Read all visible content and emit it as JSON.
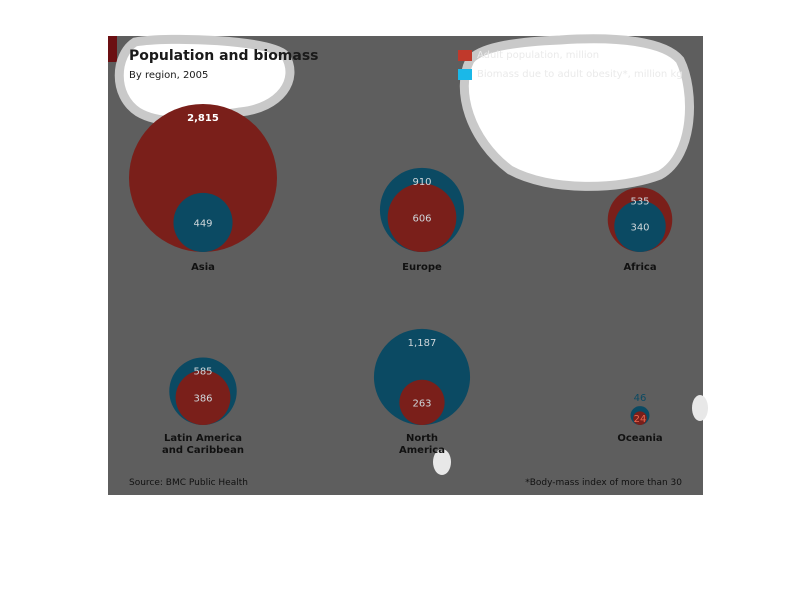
{
  "chart_data": {
    "type": "bubble",
    "title": "Population and biomass",
    "subtitle": "By region, 2005",
    "legend": [
      {
        "name": "Adult population, million",
        "color": "#c0392b"
      },
      {
        "name": "Biomass due to adult obesity*, million kg",
        "color": "#1ab8e8"
      }
    ],
    "series": [
      {
        "name": "Adult population, million",
        "color": "#7a1f1a"
      },
      {
        "name": "Biomass due to adult obesity*, million kg",
        "color": "#0b4a63"
      }
    ],
    "regions": [
      {
        "name": "Asia",
        "label_lines": [
          "Asia"
        ],
        "population": 2815,
        "population_label": "2,815",
        "biomass": 449,
        "biomass_label": "449"
      },
      {
        "name": "Europe",
        "label_lines": [
          "Europe"
        ],
        "population": 606,
        "population_label": "606",
        "biomass": 910,
        "biomass_label": "910"
      },
      {
        "name": "Africa",
        "label_lines": [
          "Africa"
        ],
        "population": 535,
        "population_label": "535",
        "biomass": 340,
        "biomass_label": "340"
      },
      {
        "name": "Latin America and Caribbean",
        "label_lines": [
          "Latin America",
          "and Caribbean"
        ],
        "population": 386,
        "population_label": "386",
        "biomass": 585,
        "biomass_label": "585"
      },
      {
        "name": "North America",
        "label_lines": [
          "North",
          "America"
        ],
        "population": 263,
        "population_label": "263",
        "biomass": 1187,
        "biomass_label": "1,187"
      },
      {
        "name": "Oceania",
        "label_lines": [
          "Oceania"
        ],
        "population": 24,
        "population_label": "24",
        "biomass": 46,
        "biomass_label": "46"
      }
    ]
  },
  "source": "Source: BMC Public Health",
  "footnote": "*Body-mass index of more than 30"
}
